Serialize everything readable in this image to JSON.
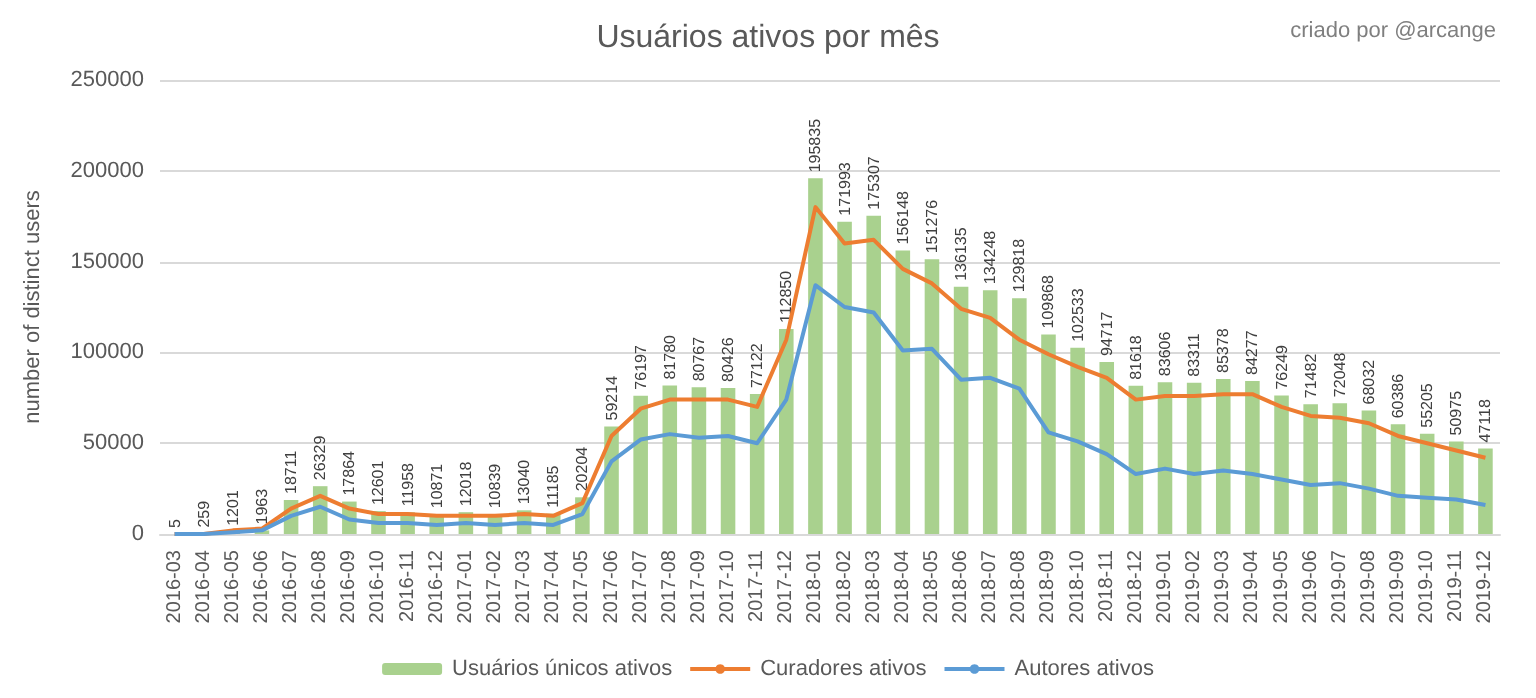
{
  "chart_data": {
    "type": "bar",
    "title": "Usuários ativos por mês",
    "ylabel": "number of distinct users",
    "annotations": [
      "criado por @arcange"
    ],
    "categories": [
      "2016-03",
      "2016-04",
      "2016-05",
      "2016-06",
      "2016-07",
      "2016-08",
      "2016-09",
      "2016-10",
      "2016-11",
      "2016-12",
      "2017-01",
      "2017-02",
      "2017-03",
      "2017-04",
      "2017-05",
      "2017-06",
      "2017-07",
      "2017-08",
      "2017-09",
      "2017-10",
      "2017-11",
      "2017-12",
      "2018-01",
      "2018-02",
      "2018-03",
      "2018-04",
      "2018-05",
      "2018-06",
      "2018-07",
      "2018-08",
      "2018-09",
      "2018-10",
      "2018-11",
      "2018-12",
      "2019-01",
      "2019-02",
      "2019-03",
      "2019-04",
      "2019-05",
      "2019-06",
      "2019-07",
      "2019-08",
      "2019-09",
      "2019-10",
      "2019-11",
      "2019-12"
    ],
    "series": [
      {
        "name": "Usuários únicos ativos",
        "color": "#a9d18e",
        "data_labels": true,
        "values": [
          5,
          259,
          1201,
          1963,
          18711,
          26329,
          17864,
          12601,
          11958,
          10871,
          12018,
          10839,
          13040,
          11185,
          20204,
          59214,
          76197,
          81780,
          80767,
          80426,
          77122,
          112850,
          195835,
          171993,
          175307,
          156148,
          151276,
          136135,
          134248,
          129818,
          109868,
          102533,
          94717,
          81618,
          83606,
          83311,
          85378,
          84277,
          76249,
          71482,
          72048,
          68032,
          60386,
          55205,
          50975,
          47118
        ]
      },
      {
        "name": "Curadores ativos",
        "type": "line",
        "color": "#ed7d31",
        "values": [
          0,
          0,
          2000,
          3000,
          14000,
          21000,
          14000,
          11000,
          11000,
          10000,
          10000,
          10000,
          11000,
          10000,
          17000,
          54000,
          69000,
          74000,
          74000,
          74000,
          70000,
          107000,
          180000,
          160000,
          162000,
          146000,
          138000,
          124000,
          119000,
          107000,
          99000,
          92000,
          86000,
          74000,
          76000,
          76000,
          77000,
          77000,
          70000,
          65000,
          64000,
          61000,
          54000,
          50000,
          46000,
          42000
        ]
      },
      {
        "name": "Autores ativos",
        "type": "line",
        "color": "#5b9bd5",
        "values": [
          0,
          0,
          1000,
          2000,
          10000,
          15000,
          8000,
          6000,
          6000,
          5000,
          6000,
          5000,
          6000,
          5000,
          11000,
          40000,
          52000,
          55000,
          53000,
          54000,
          50000,
          74000,
          137000,
          125000,
          122000,
          101000,
          102000,
          85000,
          86000,
          80000,
          56000,
          51000,
          44000,
          33000,
          36000,
          33000,
          35000,
          33000,
          30000,
          27000,
          28000,
          25000,
          21000,
          20000,
          19000,
          16000
        ]
      }
    ],
    "ylim": [
      0,
      250000
    ],
    "yticks": [
      0,
      50000,
      100000,
      150000,
      200000,
      250000
    ],
    "grid": "y",
    "legend": "bottom",
    "marker": "none"
  }
}
